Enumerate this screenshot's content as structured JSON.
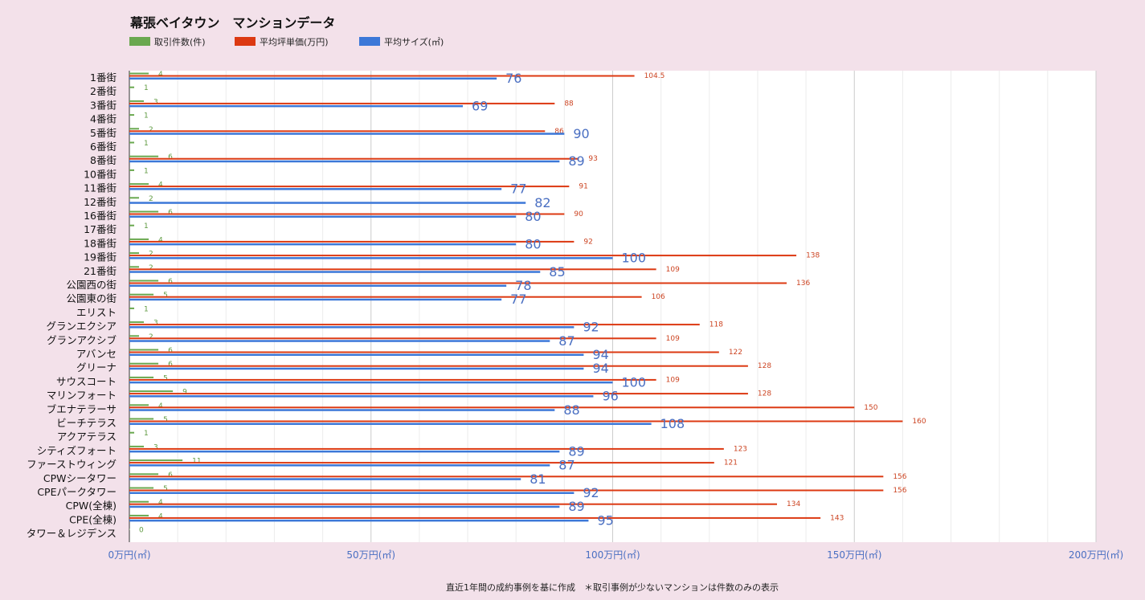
{
  "chart_data": {
    "type": "bar",
    "orientation": "horizontal",
    "title": "幕張ベイタウン　マンションデータ",
    "footnote": "直近1年間の成約事例を基に作成　＊取引事例が少ないマンションは件数のみの表示",
    "xlim": [
      0,
      200
    ],
    "x_ticks": [
      0,
      50,
      100,
      150,
      200
    ],
    "x_tick_labels": [
      "0万円(㎡)",
      "50万円(㎡)",
      "100万円(㎡)",
      "150万円(㎡)",
      "200万円(㎡)"
    ],
    "grid": true,
    "legend_position": "top-left",
    "categories": [
      "1番街",
      "2番街",
      "3番街",
      "4番街",
      "5番街",
      "6番街",
      "8番街",
      "10番街",
      "11番街",
      "12番街",
      "16番街",
      "17番街",
      "18番街",
      "19番街",
      "21番街",
      "公園西の街",
      "公園東の街",
      "エリスト",
      "グランエクシア",
      "グランアクシブ",
      "アバンセ",
      "グリーナ",
      "サウスコート",
      "マリンフォート",
      "ブエナテラーサ",
      "ビーチテラス",
      "アクアテラス",
      "シティズフォート",
      "ファーストウィング",
      "CPWシータワー",
      "CPEパークタワー",
      "CPW(全棟)",
      "CPE(全棟)",
      "タワー＆レジデンス"
    ],
    "series": [
      {
        "name": "取引件数(件)",
        "color": "#6aa84f",
        "values": [
          4,
          1,
          3,
          1,
          2,
          1,
          6,
          1,
          4,
          2,
          6,
          1,
          4,
          2,
          2,
          6,
          5,
          1,
          3,
          2,
          6,
          6,
          5,
          9,
          4,
          5,
          1,
          3,
          11,
          6,
          5,
          4,
          4,
          0
        ]
      },
      {
        "name": "平均坪単価(万円)",
        "color": "#dc3912",
        "values": [
          104.5,
          null,
          88,
          null,
          86,
          null,
          93,
          null,
          91,
          null,
          90,
          null,
          92,
          138,
          109,
          136,
          106,
          null,
          118,
          109,
          122,
          128,
          109,
          128,
          150,
          160,
          null,
          123,
          121,
          156,
          156,
          134,
          143,
          null
        ]
      },
      {
        "name": "平均サイズ(㎡)",
        "color": "#3c78d8",
        "values": [
          76,
          null,
          69,
          null,
          90,
          null,
          89,
          null,
          77,
          82,
          80,
          null,
          80,
          100,
          85,
          78,
          77,
          null,
          92,
          87,
          94,
          94,
          100,
          96,
          88,
          108,
          null,
          89,
          87,
          81,
          92,
          89,
          95,
          null
        ]
      }
    ]
  }
}
